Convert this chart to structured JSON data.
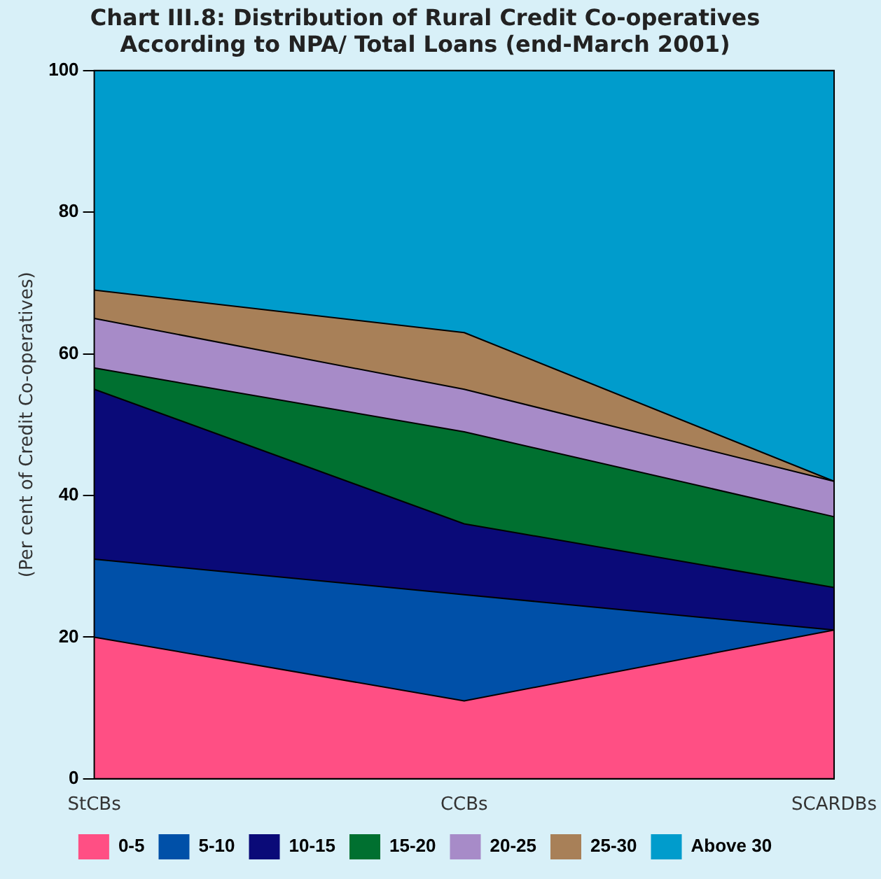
{
  "chart_data": {
    "type": "area",
    "stacked": true,
    "title": "Chart III.8: Distribution of Rural Credit Co-operatives\nAccording to NPA/ Total Loans (end-March 2001)",
    "ylabel": "(Per cent of Credit Co-operatives)",
    "categories": [
      "StCBs",
      "CCBs",
      "SCARDBs"
    ],
    "ylim": [
      0,
      100
    ],
    "yticks": [
      0,
      20,
      40,
      60,
      80,
      100
    ],
    "grid": false,
    "legend": "bottom",
    "series": [
      {
        "name": "0-5",
        "color": "#ff4f84",
        "values": [
          20,
          11,
          21
        ]
      },
      {
        "name": "5-10",
        "color": "#0050a8",
        "values": [
          11,
          15,
          0
        ]
      },
      {
        "name": "10-15",
        "color": "#0a0a78",
        "values": [
          24,
          10,
          6
        ]
      },
      {
        "name": "15-20",
        "color": "#007030",
        "values": [
          3,
          13,
          10
        ]
      },
      {
        "name": "20-25",
        "color": "#a78bc8",
        "values": [
          7,
          6,
          5
        ]
      },
      {
        "name": "25-30",
        "color": "#a88058",
        "values": [
          4,
          8,
          0
        ]
      },
      {
        "name": "Above 30",
        "color": "#009ccc",
        "values": [
          31,
          37,
          58
        ]
      }
    ]
  }
}
